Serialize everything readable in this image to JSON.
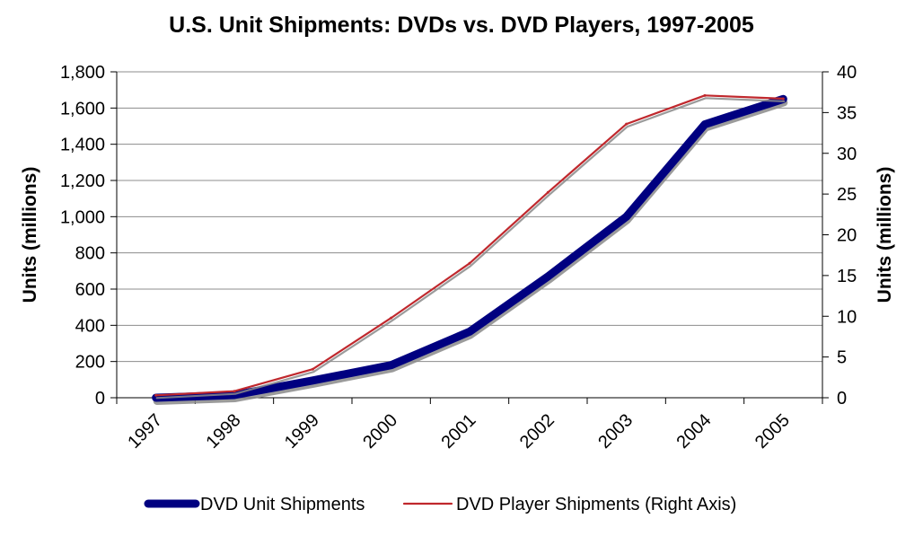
{
  "chart_data": {
    "type": "line",
    "title": "U.S. Unit Shipments: DVDs vs. DVD Players, 1997-2005",
    "categories": [
      "1997",
      "1998",
      "1999",
      "2000",
      "2001",
      "2002",
      "2003",
      "2004",
      "2005"
    ],
    "ylabel": "Units (millions)",
    "y2label": "Units (millions)",
    "ylim": [
      0,
      1800
    ],
    "y2lim": [
      0,
      40
    ],
    "yticks": [
      "0",
      "200",
      "400",
      "600",
      "800",
      "1,000",
      "1,200",
      "1,400",
      "1,600",
      "1,800"
    ],
    "y2ticks": [
      "0",
      "5",
      "10",
      "15",
      "20",
      "25",
      "30",
      "35",
      "40"
    ],
    "grid": true,
    "legend_position": "bottom",
    "series": [
      {
        "name": "DVD Unit Shipments",
        "axis": "left",
        "color": "#000080",
        "values": [
          0,
          15,
          95,
          180,
          365,
          670,
          1000,
          1510,
          1650
        ]
      },
      {
        "name": "DVD Player Shipments (Right Axis)",
        "axis": "right",
        "color": "#c0282d",
        "values": [
          0.3,
          0.8,
          3.5,
          9.8,
          16.5,
          25.2,
          33.6,
          37.1,
          36.7
        ]
      }
    ]
  }
}
